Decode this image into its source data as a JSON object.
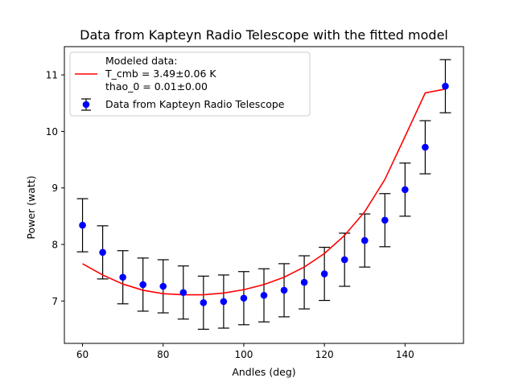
{
  "chart_data": {
    "type": "scatter",
    "title": "Data from Kapteyn Radio Telescope with the fitted model",
    "xlabel": "Andles (deg)",
    "ylabel": "Power (watt)",
    "xlim": [
      55.5,
      154.5
    ],
    "ylim": [
      6.25,
      11.5
    ],
    "xticks": [
      60,
      80,
      100,
      120,
      140
    ],
    "yticks": [
      7,
      8,
      9,
      10,
      11
    ],
    "grid": false,
    "legend_position": "top-left",
    "series": [
      {
        "name": "Data from Kapteyn Radio Telescope",
        "kind": "errorbar",
        "color": "#0000ff",
        "x": [
          60,
          65,
          70,
          75,
          80,
          85,
          90,
          95,
          100,
          105,
          110,
          115,
          120,
          125,
          130,
          135,
          140,
          145,
          150
        ],
        "y": [
          8.34,
          7.86,
          7.42,
          7.29,
          7.26,
          7.15,
          6.97,
          6.99,
          7.05,
          7.1,
          7.19,
          7.33,
          7.48,
          7.73,
          8.07,
          8.43,
          8.97,
          9.72,
          10.8
        ],
        "yerr": 0.47
      },
      {
        "name": "Modeled data:\nT_cmb = 3.49±0.06  K\n thao_0 = 0.01±0.00",
        "legend_lines": [
          "Modeled data:",
          "T_cmb = 3.49±0.06  K",
          " thao_0 = 0.01±0.00"
        ],
        "kind": "line",
        "color": "#ff0000",
        "x": [
          60,
          65,
          70,
          75,
          80,
          85,
          90,
          95,
          100,
          105,
          110,
          115,
          120,
          125,
          130,
          135,
          140,
          145,
          150
        ],
        "y": [
          7.66,
          7.46,
          7.3,
          7.19,
          7.13,
          7.11,
          7.11,
          7.14,
          7.2,
          7.29,
          7.42,
          7.6,
          7.84,
          8.16,
          8.58,
          9.15,
          9.91,
          10.68,
          10.75
        ]
      }
    ]
  }
}
